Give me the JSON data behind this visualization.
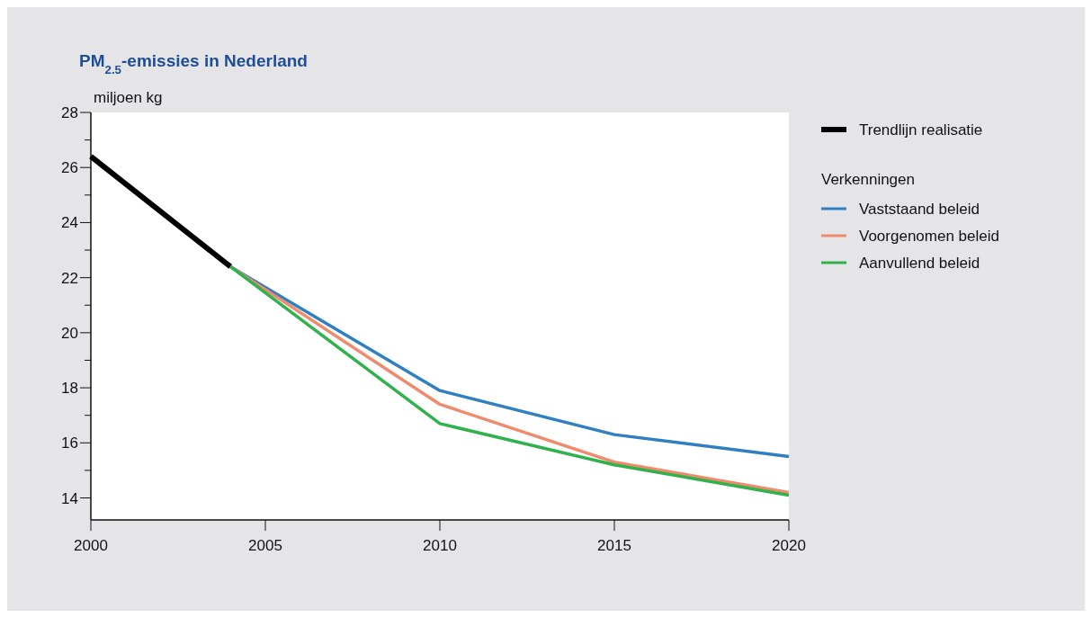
{
  "chart_data": {
    "type": "line",
    "title": "PM$_{2.5}$-emissies in Nederland",
    "ylabel": "miljoen kg",
    "legend_title": "Verkenningen",
    "legend": "right",
    "xlim": [
      2000,
      2020
    ],
    "xticks": [
      2000,
      2005,
      2010,
      2015,
      2020
    ],
    "ylim": [
      13.2,
      28
    ],
    "yticks": [
      14,
      {
        "value": 15,
        "label": null
      },
      16,
      {
        "value": 17,
        "label": null
      },
      18,
      {
        "value": 19,
        "label": null
      },
      20,
      {
        "value": 21,
        "label": null
      },
      22,
      {
        "value": 23,
        "label": null
      },
      24,
      {
        "value": 25,
        "label": null
      },
      26,
      {
        "value": 27,
        "label": null
      },
      28
    ],
    "grid": false,
    "marker": "none",
    "series": [
      {
        "name": "Trendlijn realisatie",
        "color": "#000000",
        "x": [
          2000,
          2004
        ],
        "values": [
          26.4,
          22.4
        ]
      },
      {
        "name": "Vaststaand beleid",
        "color": "#2f7fc1",
        "x": [
          2004,
          2010,
          2015,
          2020
        ],
        "values": [
          22.4,
          17.9,
          16.3,
          15.5
        ]
      },
      {
        "name": "Voorgenomen beleid",
        "color": "#f08a6c",
        "x": [
          2004,
          2010,
          2015,
          2020
        ],
        "values": [
          22.4,
          17.4,
          15.3,
          14.2
        ]
      },
      {
        "name": "Aanvullend beleid",
        "color": "#2fb24c",
        "x": [
          2004,
          2010,
          2015,
          2020
        ],
        "values": [
          22.4,
          16.7,
          15.2,
          14.1
        ]
      }
    ]
  }
}
